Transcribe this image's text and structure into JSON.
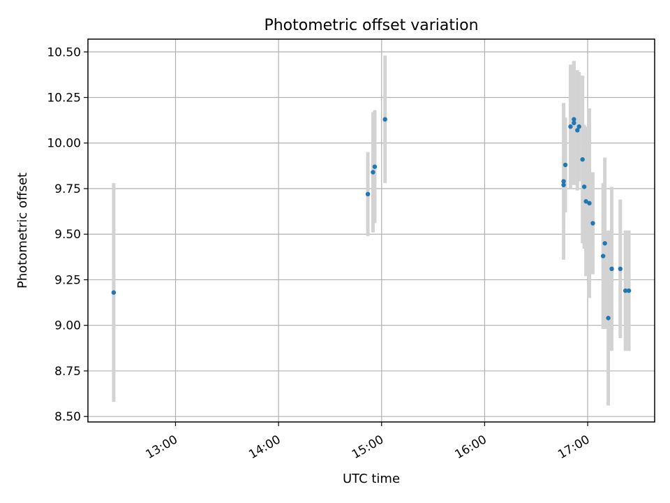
{
  "chart_data": {
    "type": "scatter",
    "title": "Photometric offset variation",
    "xlabel": "UTC time",
    "ylabel": "Photometric offset",
    "xlim": [
      "12:09",
      "17:39"
    ],
    "ylim": [
      8.47,
      10.57
    ],
    "grid": true,
    "x_ticks": [
      "13:00",
      "14:00",
      "15:00",
      "16:00",
      "17:00"
    ],
    "y_ticks": [
      "8.50",
      "8.75",
      "9.00",
      "9.25",
      "9.50",
      "9.75",
      "10.00",
      "10.25",
      "10.50"
    ],
    "point_color": "#1f77b4",
    "error_color": "#d3d3d3",
    "points": [
      {
        "x": "12:24",
        "y": 9.18,
        "err": 0.6
      },
      {
        "x": "14:52",
        "y": 9.72,
        "err": 0.23
      },
      {
        "x": "14:55",
        "y": 9.84,
        "err": 0.33
      },
      {
        "x": "14:56",
        "y": 9.87,
        "err": 0.31
      },
      {
        "x": "15:02",
        "y": 10.13,
        "err": 0.35
      },
      {
        "x": "16:46",
        "y": 9.79,
        "err": 0.43
      },
      {
        "x": "16:46",
        "y": 9.77,
        "err": 0.16
      },
      {
        "x": "16:47",
        "y": 9.88,
        "err": 0.26
      },
      {
        "x": "16:50",
        "y": 10.09,
        "err": 0.34
      },
      {
        "x": "16:52",
        "y": 10.13,
        "err": 0.32
      },
      {
        "x": "16:52",
        "y": 10.11,
        "err": 0.34
      },
      {
        "x": "16:54",
        "y": 10.07,
        "err": 0.33
      },
      {
        "x": "16:55",
        "y": 10.09,
        "err": 0.3
      },
      {
        "x": "16:57",
        "y": 9.91,
        "err": 0.46
      },
      {
        "x": "16:58",
        "y": 9.76,
        "err": 0.34
      },
      {
        "x": "16:59",
        "y": 9.68,
        "err": 0.41
      },
      {
        "x": "17:01",
        "y": 9.67,
        "err": 0.52
      },
      {
        "x": "17:03",
        "y": 9.56,
        "err": 0.28
      },
      {
        "x": "17:09",
        "y": 9.38,
        "err": 0.4
      },
      {
        "x": "17:10",
        "y": 9.45,
        "err": 0.47
      },
      {
        "x": "17:12",
        "y": 9.04,
        "err": 0.48
      },
      {
        "x": "17:14",
        "y": 9.31,
        "err": 0.45
      },
      {
        "x": "17:19",
        "y": 9.31,
        "err": 0.38
      },
      {
        "x": "17:22",
        "y": 9.19,
        "err": 0.33
      },
      {
        "x": "17:24",
        "y": 9.19,
        "err": 0.33
      }
    ]
  }
}
